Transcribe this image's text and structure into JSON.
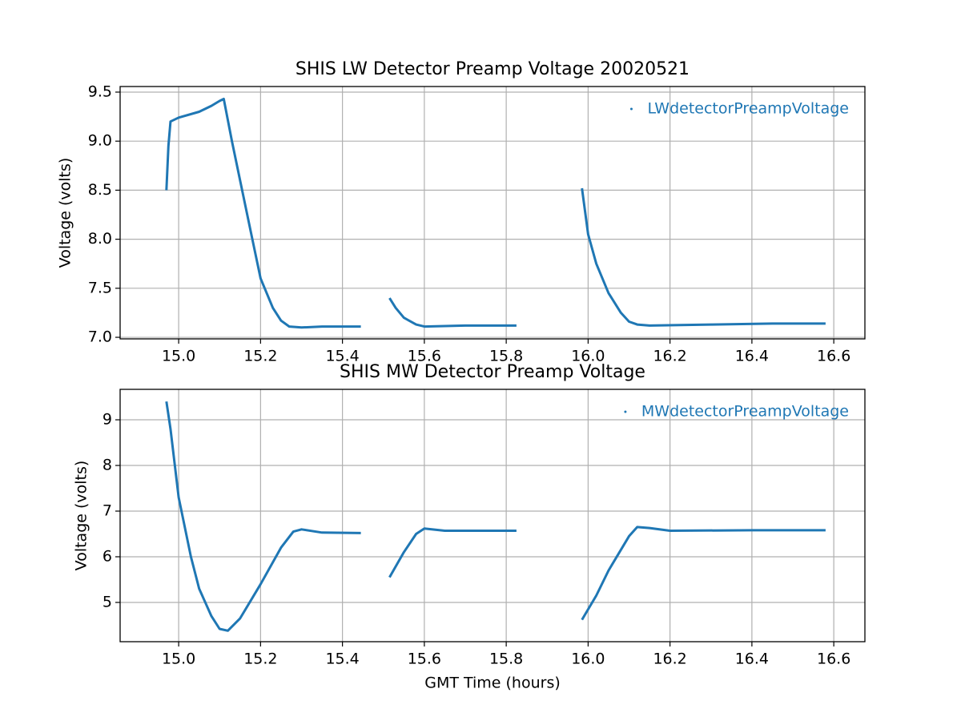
{
  "chart_data": [
    {
      "type": "line",
      "title": "SHIS LW Detector Preamp Voltage 20020521",
      "ylabel": "Voltage (volts)",
      "x": [
        14.97,
        14.975,
        14.98,
        15.0,
        15.05,
        15.08,
        15.1,
        15.11,
        15.13,
        15.15,
        15.18,
        15.2,
        15.23,
        15.25,
        15.27,
        15.3,
        15.35,
        15.445,
        null,
        15.515,
        15.53,
        15.55,
        15.58,
        15.6,
        15.7,
        15.825,
        null,
        15.985,
        16.0,
        16.02,
        16.05,
        16.08,
        16.1,
        16.12,
        16.15,
        16.3,
        16.45,
        16.58
      ],
      "series": [
        {
          "name": "LWdetectorPreampVoltage",
          "color": "#1f77b4",
          "values": [
            8.5,
            8.95,
            9.2,
            9.24,
            9.3,
            9.36,
            9.41,
            9.43,
            9.0,
            8.6,
            8.0,
            7.6,
            7.3,
            7.17,
            7.11,
            7.1,
            7.11,
            7.11,
            null,
            7.4,
            7.3,
            7.2,
            7.13,
            7.11,
            7.12,
            7.12,
            null,
            8.52,
            8.05,
            7.75,
            7.45,
            7.25,
            7.16,
            7.13,
            7.12,
            7.13,
            7.14,
            7.14
          ]
        }
      ],
      "xlim": [
        14.857,
        16.676
      ],
      "ylim": [
        6.984,
        9.557
      ],
      "xticks": [
        {
          "value": 15,
          "label": "15.0"
        },
        15.2,
        15.4,
        15.6,
        15.8,
        {
          "value": 16,
          "label": "16.0"
        },
        16.2,
        16.4,
        16.6
      ],
      "yticks": [
        {
          "value": 7,
          "label": "7.0"
        },
        7.5,
        {
          "value": 8,
          "label": "8.0"
        },
        8.5,
        {
          "value": 9,
          "label": "9.0"
        },
        9.5
      ],
      "grid": true,
      "legend": "upper right"
    },
    {
      "type": "line",
      "title": "SHIS MW Detector Preamp Voltage",
      "xlabel": "GMT Time (hours)",
      "ylabel": "Voltage (volts)",
      "x": [
        14.97,
        14.98,
        15.0,
        15.03,
        15.05,
        15.08,
        15.1,
        15.12,
        15.15,
        15.2,
        15.25,
        15.28,
        15.3,
        15.35,
        15.445,
        null,
        15.515,
        15.55,
        15.58,
        15.6,
        15.65,
        15.825,
        null,
        15.985,
        16.02,
        16.05,
        16.1,
        16.12,
        16.15,
        16.2,
        16.4,
        16.58
      ],
      "series": [
        {
          "name": "MWdetectorPreampVoltage",
          "color": "#1f77b4",
          "values": [
            9.4,
            8.8,
            7.3,
            6.0,
            5.3,
            4.7,
            4.42,
            4.38,
            4.65,
            5.4,
            6.2,
            6.55,
            6.6,
            6.53,
            6.52,
            null,
            5.55,
            6.1,
            6.5,
            6.62,
            6.57,
            6.57,
            null,
            4.62,
            5.15,
            5.7,
            6.45,
            6.65,
            6.63,
            6.57,
            6.58,
            6.58
          ]
        }
      ],
      "xlim": [
        14.857,
        16.676
      ],
      "ylim": [
        4.14,
        9.667
      ],
      "xticks": [
        {
          "value": 15,
          "label": "15.0"
        },
        15.2,
        15.4,
        15.6,
        15.8,
        {
          "value": 16,
          "label": "16.0"
        },
        16.2,
        16.4,
        16.6
      ],
      "yticks": [
        5,
        6,
        7,
        8,
        9
      ],
      "grid": true,
      "legend": "upper right"
    }
  ]
}
